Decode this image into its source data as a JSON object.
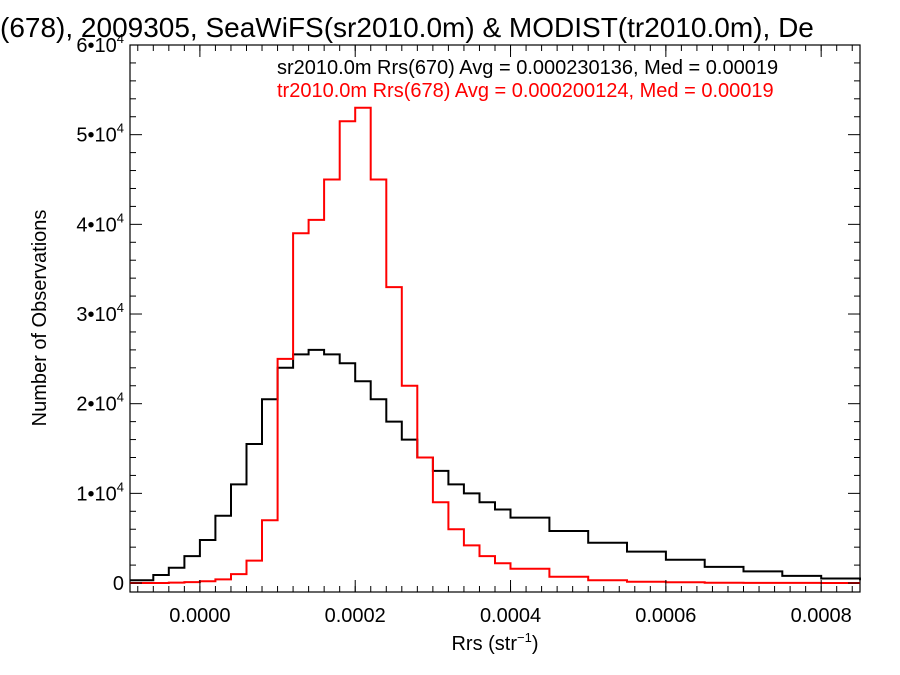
{
  "chart_data": {
    "type": "line",
    "title": "(678), 2009305, SeaWiFS(sr2010.0m) & MODIST(tr2010.0m), De",
    "xlabel": "Rrs (str",
    "xlabel_sup": "−1",
    "xlabel_suffix": ")",
    "ylabel": "Number of Observations",
    "xlim": [
      -9e-05,
      0.00085
    ],
    "ylim": [
      -1000,
      60000
    ],
    "grid": false,
    "legend_position": "top-right",
    "x_ticks": [
      {
        "value": 0.0,
        "label": "0.0000"
      },
      {
        "value": 0.0002,
        "label": "0.0002"
      },
      {
        "value": 0.0004,
        "label": "0.0004"
      },
      {
        "value": 0.0006,
        "label": "0.0006"
      },
      {
        "value": 0.0008,
        "label": "0.0008"
      }
    ],
    "y_ticks": [
      {
        "value": 0,
        "label": "0"
      },
      {
        "value": 10000,
        "mantissa": "1",
        "exp": "4"
      },
      {
        "value": 20000,
        "mantissa": "2",
        "exp": "4"
      },
      {
        "value": 30000,
        "mantissa": "3",
        "exp": "4"
      },
      {
        "value": 40000,
        "mantissa": "4",
        "exp": "4"
      },
      {
        "value": 50000,
        "mantissa": "5",
        "exp": "4"
      },
      {
        "value": 60000,
        "mantissa": "6",
        "exp": "4"
      }
    ],
    "x": [
      -9e-05,
      -6e-05,
      -4e-05,
      -2e-05,
      0.0,
      2e-05,
      4e-05,
      6e-05,
      8e-05,
      0.0001,
      0.00012,
      0.00014,
      0.00016,
      0.00018,
      0.0002,
      0.00022,
      0.00024,
      0.00026,
      0.00028,
      0.0003,
      0.00032,
      0.00034,
      0.00036,
      0.00038,
      0.0004,
      0.00045,
      0.0005,
      0.00055,
      0.0006,
      0.00065,
      0.0007,
      0.00075,
      0.0008,
      0.00085
    ],
    "series": [
      {
        "name": "sr2010.0m Rrs(670) Avg = 0.000230136, Med = 0.00019",
        "color": "#000000",
        "values": [
          300,
          900,
          1700,
          3000,
          4800,
          7500,
          11000,
          15500,
          20500,
          24000,
          25500,
          26000,
          25500,
          24500,
          22500,
          20500,
          18000,
          16000,
          14000,
          12500,
          11000,
          10000,
          9000,
          8200,
          7300,
          5800,
          4500,
          3500,
          2600,
          1800,
          1300,
          800,
          500,
          300
        ]
      },
      {
        "name": "tr2010.0m Rrs(678) Avg = 0.000200124, Med = 0.00019",
        "color": "#ff0000",
        "values": [
          0,
          0,
          50,
          100,
          200,
          400,
          1000,
          2500,
          7000,
          25000,
          39000,
          40500,
          45000,
          51500,
          53000,
          45000,
          33000,
          22000,
          14000,
          9000,
          6000,
          4200,
          3000,
          2200,
          1600,
          700,
          300,
          150,
          80,
          40,
          20,
          10,
          5,
          0
        ]
      }
    ]
  }
}
